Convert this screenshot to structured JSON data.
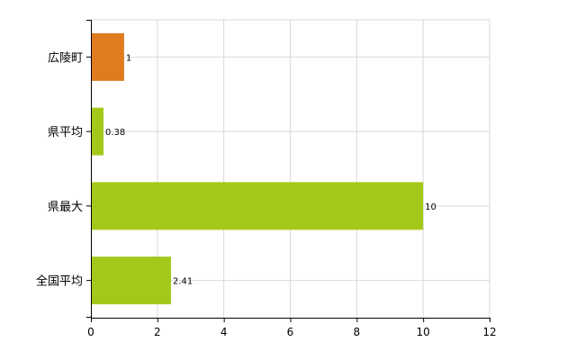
{
  "chart_data": {
    "type": "bar",
    "orientation": "horizontal",
    "categories": [
      "広陵町",
      "県平均",
      "県最大",
      "全国平均"
    ],
    "values": [
      1,
      0.38,
      10,
      2.41
    ],
    "value_labels": [
      "1",
      "0.38",
      "10",
      "2.41"
    ],
    "bar_colors": [
      "#e07b20",
      "#a4c81a",
      "#a4c81a",
      "#a4c81a"
    ],
    "xlim": [
      0,
      12
    ],
    "xticks": [
      0,
      2,
      4,
      6,
      8,
      10,
      12
    ],
    "grid": true,
    "title": "",
    "xlabel": "",
    "ylabel": ""
  }
}
